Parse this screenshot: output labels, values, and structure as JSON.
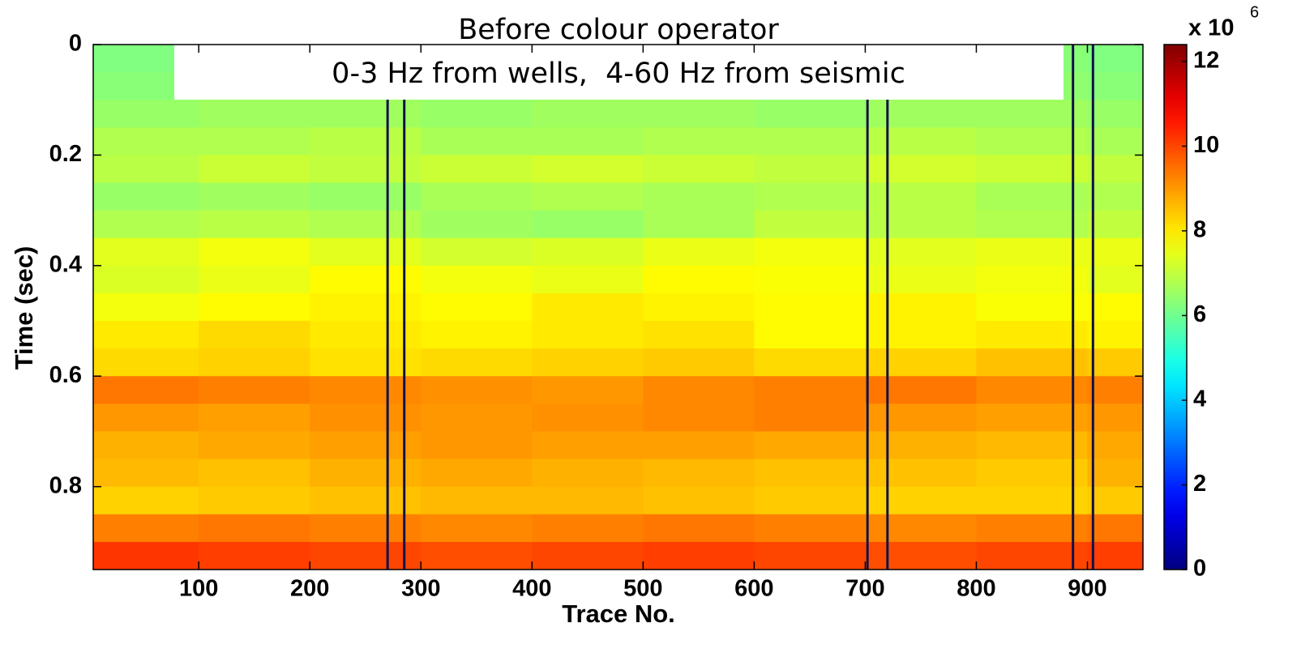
{
  "chart_data": {
    "type": "heatmap",
    "title": "Before colour operator",
    "subtitle": "0-3 Hz from wells,  4-60 Hz from seismic",
    "xlabel": "Trace No.",
    "ylabel": "Time (sec)",
    "xlim": [
      5,
      950
    ],
    "ylim": [
      0,
      0.95
    ],
    "y_reversed": true,
    "xticks": [
      100,
      200,
      300,
      400,
      500,
      600,
      700,
      800,
      900
    ],
    "yticks": [
      0,
      0.2,
      0.4,
      0.6,
      0.8
    ],
    "x_edges": [
      5,
      100,
      200,
      300,
      400,
      500,
      600,
      700,
      800,
      900,
      950
    ],
    "y_edges": [
      0,
      0.05,
      0.1,
      0.15,
      0.2,
      0.25,
      0.3,
      0.35,
      0.4,
      0.45,
      0.5,
      0.55,
      0.6,
      0.65,
      0.7,
      0.75,
      0.8,
      0.85,
      0.9,
      0.95
    ],
    "z": [
      [
        6.2,
        6.3,
        6.3,
        6.2,
        6.3,
        6.3,
        6.2,
        6.3,
        6.3,
        6.2
      ],
      [
        6.3,
        6.4,
        6.4,
        6.3,
        6.4,
        6.4,
        6.3,
        6.4,
        6.4,
        6.3
      ],
      [
        6.5,
        6.6,
        6.6,
        6.5,
        6.6,
        6.6,
        6.5,
        6.6,
        6.6,
        6.5
      ],
      [
        6.8,
        6.8,
        6.9,
        6.7,
        6.7,
        6.8,
        6.8,
        6.9,
        6.8,
        6.7
      ],
      [
        6.9,
        7.1,
        7.0,
        7.1,
        7.2,
        7.1,
        7.0,
        7.2,
        7.1,
        7.0
      ],
      [
        6.5,
        6.6,
        6.5,
        6.7,
        6.8,
        6.7,
        6.8,
        6.9,
        6.7,
        6.8
      ],
      [
        6.8,
        6.9,
        6.8,
        6.6,
        6.5,
        6.7,
        7.0,
        6.9,
        6.8,
        7.0
      ],
      [
        7.4,
        7.6,
        7.4,
        7.2,
        7.3,
        7.5,
        7.6,
        7.4,
        7.5,
        7.5
      ],
      [
        7.3,
        7.5,
        7.8,
        7.6,
        7.5,
        7.8,
        7.7,
        7.5,
        7.6,
        7.4
      ],
      [
        7.6,
        7.8,
        7.9,
        7.8,
        8.0,
        7.9,
        7.8,
        7.9,
        7.7,
        7.8
      ],
      [
        8.0,
        8.2,
        8.0,
        7.9,
        8.0,
        8.1,
        7.8,
        7.9,
        8.0,
        7.9
      ],
      [
        8.2,
        8.3,
        8.1,
        8.2,
        8.3,
        8.4,
        8.2,
        8.3,
        8.5,
        8.4
      ],
      [
        9.4,
        9.3,
        9.2,
        9.1,
        9.0,
        9.2,
        9.3,
        9.4,
        9.2,
        9.3
      ],
      [
        9.0,
        8.9,
        9.1,
        9.0,
        9.1,
        9.2,
        9.3,
        9.0,
        8.9,
        9.0
      ],
      [
        8.7,
        8.8,
        8.9,
        9.0,
        8.9,
        8.9,
        8.8,
        8.7,
        8.6,
        8.8
      ],
      [
        8.6,
        8.5,
        8.7,
        8.8,
        8.7,
        8.6,
        8.5,
        8.5,
        8.4,
        8.7
      ],
      [
        8.3,
        8.4,
        8.5,
        8.6,
        8.6,
        8.5,
        8.4,
        8.3,
        8.3,
        8.4
      ],
      [
        9.3,
        9.4,
        9.3,
        9.2,
        9.3,
        9.4,
        9.3,
        9.2,
        9.3,
        9.4
      ],
      [
        10.2,
        10.1,
        10.0,
        9.9,
        10.0,
        10.1,
        10.0,
        9.9,
        10.0,
        10.1
      ]
    ],
    "colormap": "jet",
    "clim": [
      0,
      12.4
    ],
    "cticks": [
      0,
      2,
      4,
      6,
      8,
      10,
      12
    ],
    "colorbar_multiplier": "x 10",
    "colorbar_exponent": "6",
    "wells": [
      [
        270,
        285
      ],
      [
        702,
        720
      ],
      [
        887,
        905
      ]
    ],
    "well_color": "#10104a"
  }
}
